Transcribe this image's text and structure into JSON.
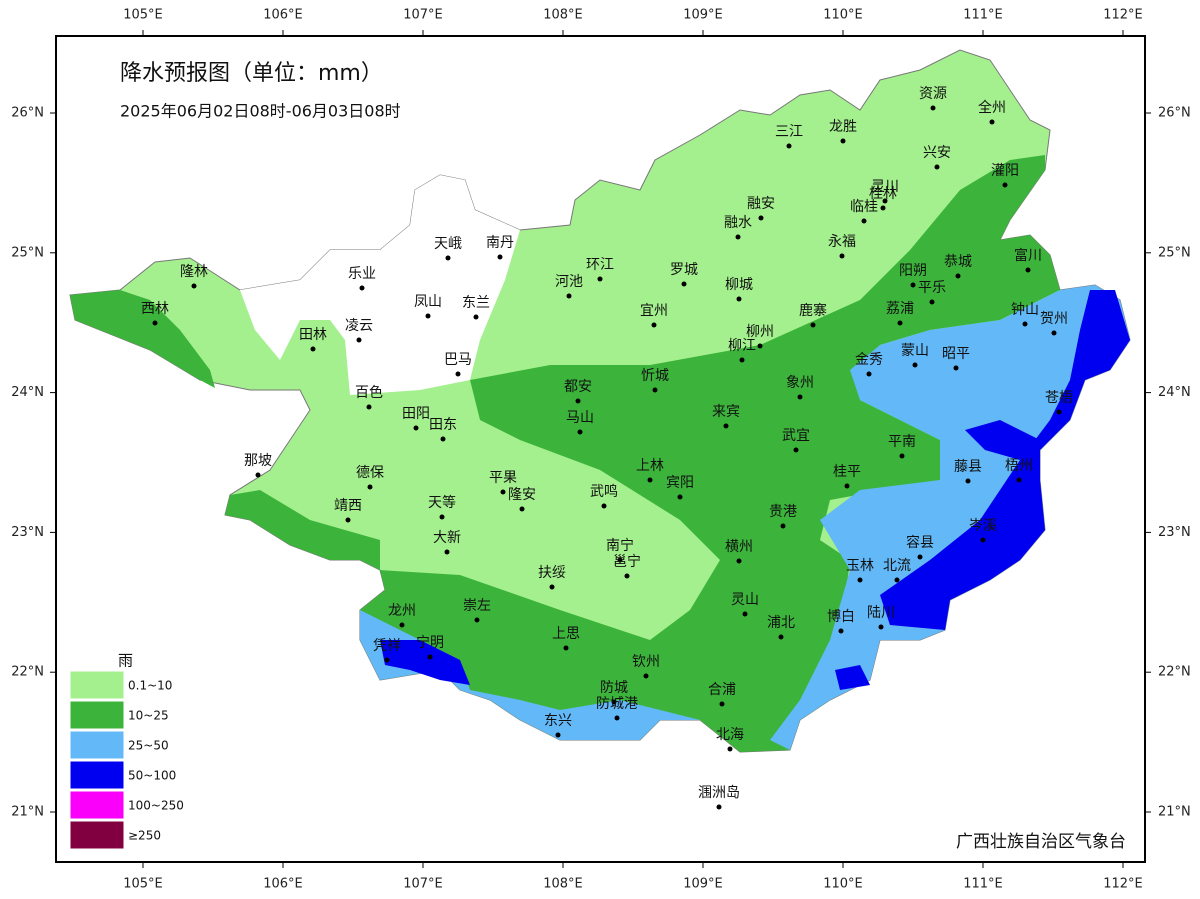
{
  "map": {
    "title": "降水预报图（单位：mm）",
    "subtitle": "2025年06月02日08时-06月03日08时",
    "agency": "广西壮族自治区气象台",
    "xticks": [
      {
        "value": 105,
        "label": "105°E"
      },
      {
        "value": 106,
        "label": "106°E"
      },
      {
        "value": 107,
        "label": "107°E"
      },
      {
        "value": 108,
        "label": "108°E"
      },
      {
        "value": 109,
        "label": "109°E"
      },
      {
        "value": 110,
        "label": "110°E"
      },
      {
        "value": 111,
        "label": "111°E"
      },
      {
        "value": 112,
        "label": "112°E"
      }
    ],
    "yticks": [
      {
        "value": 26,
        "label": "26°N"
      },
      {
        "value": 25,
        "label": "25°N"
      },
      {
        "value": 24,
        "label": "24°N"
      },
      {
        "value": 23,
        "label": "23°N"
      },
      {
        "value": 22,
        "label": "22°N"
      },
      {
        "value": 21,
        "label": "21°N"
      }
    ],
    "legend": {
      "title": "雨",
      "items": [
        {
          "label": "0.1~10",
          "color": "#a5f08e"
        },
        {
          "label": "10~25",
          "color": "#3cb43c"
        },
        {
          "label": "25~50",
          "color": "#63b8f7"
        },
        {
          "label": "50~100",
          "color": "#0000f0"
        },
        {
          "label": "100~250",
          "color": "#fa00fa"
        },
        {
          "label": "≥250",
          "color": "#800040"
        }
      ]
    },
    "cities": [
      "隆林",
      "西林",
      "乐业",
      "天峨",
      "南丹",
      "田林",
      "凌云",
      "凤山",
      "东兰",
      "巴马",
      "百色",
      "河池",
      "环江",
      "罗城",
      "宜州",
      "柳城",
      "融安",
      "融水",
      "三江",
      "龙胜",
      "资源",
      "全州",
      "兴安",
      "灵川",
      "桂林",
      "临桂",
      "永福",
      "灌阳",
      "阳朔",
      "平乐",
      "恭城",
      "富川",
      "钟山",
      "贺州",
      "荔浦",
      "鹿寨",
      "柳州",
      "柳江",
      "金秀",
      "蒙山",
      "昭平",
      "都安",
      "忻城",
      "象州",
      "苍梧",
      "田阳",
      "田东",
      "马山",
      "来宾",
      "武宜",
      "平南",
      "那坡",
      "德保",
      "藤县",
      "梧州",
      "上林",
      "宾阳",
      "桂平",
      "平果",
      "隆安",
      "武鸣",
      "天等",
      "靖西",
      "贵港",
      "岑溪",
      "容县",
      "大新",
      "南宁",
      "邕宁",
      "横州",
      "玉林",
      "北流",
      "扶绥",
      "龙州",
      "崇左",
      "灵山",
      "博白",
      "陆川",
      "浦北",
      "上思",
      "凭祥",
      "宁明",
      "钦州",
      "防城",
      "防城港",
      "合浦",
      "东兴",
      "北海",
      "涠洲岛"
    ]
  }
}
